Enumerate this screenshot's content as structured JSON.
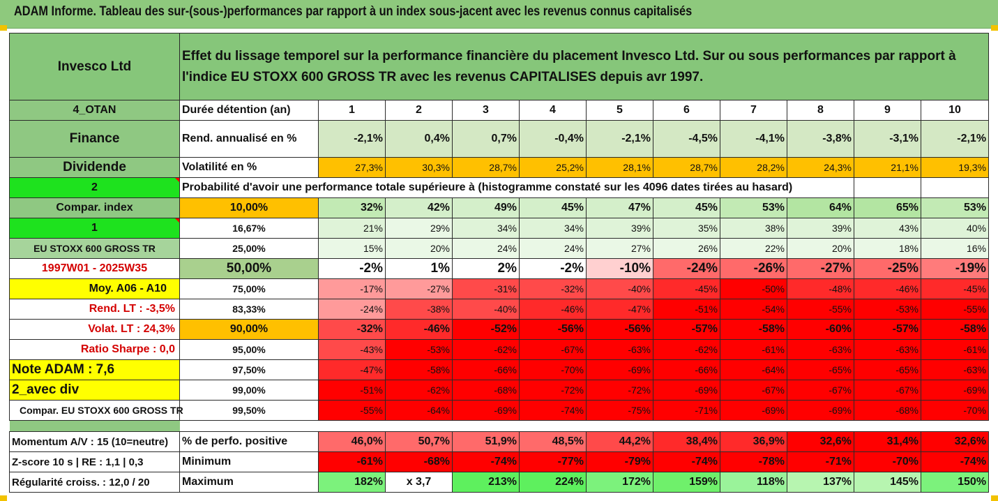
{
  "title": "ADAM Informe. Tableau des sur-(sous-)performances par rapport à un index sous-jacent avec les revenus connus capitalisés",
  "header": {
    "company": "Invesco Ltd",
    "description": "Effet du lissage temporel sur la performance financière du placement Invesco Ltd. Sur ou sous performances par rapport à l'indice EU STOXX 600 GROSS TR avec les revenus CAPITALISES depuis avr 1997."
  },
  "left": {
    "code": "4_OTAN",
    "sector": "Finance",
    "type": "Dividende",
    "n2": "2",
    "compar": "Compar. index",
    "n1": "1",
    "index_name": "EU STOXX 600 GROSS TR",
    "period": "1997W01 - 2025W35",
    "moy": "Moy. A06 - A10",
    "rend_lt": "Rend. LT :   -3,5%",
    "volat_lt": "Volat. LT :   24,3%",
    "sharpe": "Ratio Sharpe :   0,0",
    "note": "Note ADAM : 7,6",
    "avec_div": "2_avec div",
    "compar_full": "Compar. EU STOXX 600 GROSS TR",
    "momentum": "Momentum A/V : 15 (10=neutre)",
    "zscore": "Z-score 10 s  |  RE : 1,1  |  0,3",
    "regularite": "Régularité croiss. : 12,0 / 20"
  },
  "rows": {
    "duree": {
      "label": "Durée détention (an)",
      "values": [
        "1",
        "2",
        "3",
        "4",
        "5",
        "6",
        "7",
        "8",
        "9",
        "10"
      ]
    },
    "rend": {
      "label": "Rend. annualisé en %",
      "values": [
        "-2,1%",
        "0,4%",
        "0,7%",
        "-0,4%",
        "-2,1%",
        "-4,5%",
        "-4,1%",
        "-3,8%",
        "-3,1%",
        "-2,1%"
      ]
    },
    "vol": {
      "label": "Volatilité en %",
      "values": [
        "27,3%",
        "30,3%",
        "28,7%",
        "25,2%",
        "28,1%",
        "28,7%",
        "28,2%",
        "24,3%",
        "21,1%",
        "19,3%"
      ]
    },
    "proba_label": "Probabilité d'avoir une performance totale supérieure à (histogramme constaté sur les 4096 dates tirées au hasard)",
    "pct": [
      {
        "label": "10,00%",
        "values": [
          "32%",
          "42%",
          "49%",
          "45%",
          "47%",
          "45%",
          "53%",
          "64%",
          "65%",
          "53%"
        ]
      },
      {
        "label": "16,67%",
        "values": [
          "21%",
          "29%",
          "34%",
          "34%",
          "39%",
          "35%",
          "38%",
          "39%",
          "43%",
          "40%"
        ]
      },
      {
        "label": "25,00%",
        "values": [
          "15%",
          "20%",
          "24%",
          "24%",
          "27%",
          "26%",
          "22%",
          "20%",
          "18%",
          "16%"
        ]
      },
      {
        "label": "50,00%",
        "values": [
          "-2%",
          "1%",
          "2%",
          "-2%",
          "-10%",
          "-24%",
          "-26%",
          "-27%",
          "-25%",
          "-19%"
        ]
      },
      {
        "label": "75,00%",
        "values": [
          "-17%",
          "-27%",
          "-31%",
          "-32%",
          "-40%",
          "-45%",
          "-50%",
          "-48%",
          "-46%",
          "-45%"
        ]
      },
      {
        "label": "83,33%",
        "values": [
          "-24%",
          "-38%",
          "-40%",
          "-46%",
          "-47%",
          "-51%",
          "-54%",
          "-55%",
          "-53%",
          "-55%"
        ]
      },
      {
        "label": "90,00%",
        "values": [
          "-32%",
          "-46%",
          "-52%",
          "-56%",
          "-56%",
          "-57%",
          "-58%",
          "-60%",
          "-57%",
          "-58%"
        ]
      },
      {
        "label": "95,00%",
        "values": [
          "-43%",
          "-53%",
          "-62%",
          "-67%",
          "-63%",
          "-62%",
          "-61%",
          "-63%",
          "-63%",
          "-61%"
        ]
      },
      {
        "label": "97,50%",
        "values": [
          "-47%",
          "-58%",
          "-66%",
          "-70%",
          "-69%",
          "-66%",
          "-64%",
          "-65%",
          "-65%",
          "-63%"
        ]
      },
      {
        "label": "99,00%",
        "values": [
          "-51%",
          "-62%",
          "-68%",
          "-72%",
          "-72%",
          "-69%",
          "-67%",
          "-67%",
          "-67%",
          "-69%"
        ]
      },
      {
        "label": "99,50%",
        "values": [
          "-55%",
          "-64%",
          "-69%",
          "-74%",
          "-75%",
          "-71%",
          "-69%",
          "-69%",
          "-68%",
          "-70%"
        ]
      }
    ],
    "positive": {
      "label": "% de perfo. positive",
      "values": [
        "46,0%",
        "50,7%",
        "51,9%",
        "48,5%",
        "44,2%",
        "38,4%",
        "36,9%",
        "32,6%",
        "31,4%",
        "32,6%"
      ]
    },
    "minimum": {
      "label": "Minimum",
      "values": [
        "-61%",
        "-68%",
        "-74%",
        "-77%",
        "-79%",
        "-74%",
        "-78%",
        "-71%",
        "-70%",
        "-74%"
      ]
    },
    "maximum": {
      "label": "Maximum",
      "values": [
        "182%",
        "x 3,7",
        "213%",
        "224%",
        "172%",
        "159%",
        "118%",
        "137%",
        "145%",
        "150%"
      ]
    }
  },
  "colors": {
    "header_green": "#86c67a",
    "lime": "#1ee21e",
    "yellow": "#ffff00",
    "orange": "#ffc000",
    "red": "#ff0000"
  }
}
